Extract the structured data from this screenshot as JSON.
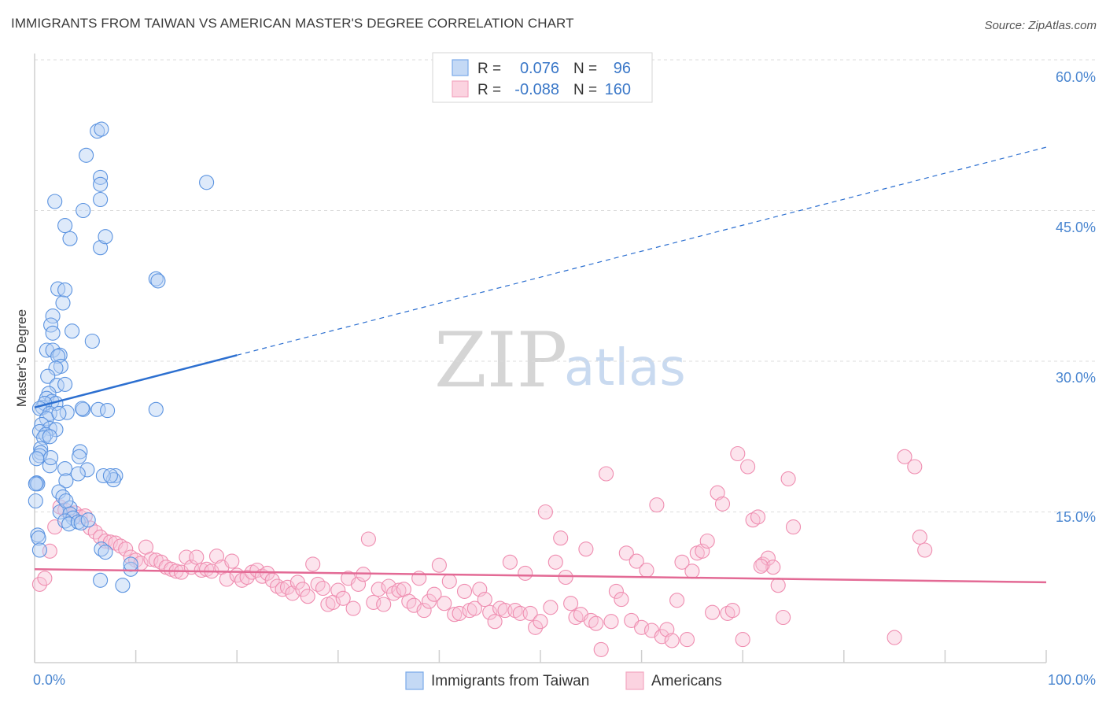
{
  "header": {
    "title": "IMMIGRANTS FROM TAIWAN VS AMERICAN MASTER'S DEGREE CORRELATION CHART",
    "source": "Source: ZipAtlas.com"
  },
  "watermark": {
    "zip": "ZIP",
    "atlas": "atlas"
  },
  "legend": {
    "r_label": "R =",
    "n_label": "N =",
    "rows": [
      {
        "r": "0.076",
        "n": "96",
        "color": "#7aaae8"
      },
      {
        "r": "-0.088",
        "n": "160",
        "color": "#f4a6c0"
      }
    ]
  },
  "bottom_legend": [
    "Immigrants from Taiwan",
    "Americans"
  ],
  "chart_data": {
    "type": "scatter",
    "title": "IMMIGRANTS FROM TAIWAN VS AMERICAN MASTER'S DEGREE CORRELATION CHART",
    "xlabel": "",
    "ylabel": "Master's Degree",
    "xlim": [
      0,
      100
    ],
    "ylim": [
      0,
      60
    ],
    "x_tick_labels": [
      "0.0%",
      "100.0%"
    ],
    "y_tick_labels": [
      "15.0%",
      "30.0%",
      "45.0%",
      "60.0%"
    ],
    "y_tick_values": [
      15,
      30,
      45,
      60
    ],
    "series": [
      {
        "name": "Immigrants from Taiwan",
        "color": "#5b93e0",
        "line_color": "#2c6fd0",
        "R": 0.076,
        "N": 96,
        "trend": {
          "x0": 0,
          "y0": 25.4,
          "x_solid_end": 20,
          "y_solid_end": 30.6,
          "x1": 100,
          "y1": 51.3
        },
        "points": [
          [
            6.2,
            52.9
          ],
          [
            5.1,
            50.5
          ],
          [
            6.6,
            53.1
          ],
          [
            6.5,
            48.3
          ],
          [
            6.5,
            47.6
          ],
          [
            2,
            45.9
          ],
          [
            4.8,
            45
          ],
          [
            6.5,
            46.1
          ],
          [
            3,
            43.5
          ],
          [
            3.5,
            42.2
          ],
          [
            6.5,
            41.3
          ],
          [
            7,
            42.4
          ],
          [
            17,
            47.8
          ],
          [
            12,
            38.2
          ],
          [
            12.2,
            38
          ],
          [
            2.3,
            37.2
          ],
          [
            3,
            37.1
          ],
          [
            2.8,
            35.8
          ],
          [
            1.8,
            34.5
          ],
          [
            1.6,
            33.6
          ],
          [
            1.8,
            32.8
          ],
          [
            3.7,
            33
          ],
          [
            5.7,
            32
          ],
          [
            1.2,
            31.1
          ],
          [
            1.8,
            31.1
          ],
          [
            2.5,
            30.6
          ],
          [
            2.3,
            30.5
          ],
          [
            2.6,
            29.5
          ],
          [
            2.1,
            29.3
          ],
          [
            1.3,
            28.5
          ],
          [
            2.2,
            27.6
          ],
          [
            3,
            27.7
          ],
          [
            1.4,
            26.8
          ],
          [
            1.2,
            26.3
          ],
          [
            1.7,
            26
          ],
          [
            2.1,
            25.8
          ],
          [
            0.8,
            25.4
          ],
          [
            1,
            25.8
          ],
          [
            0.5,
            25.3
          ],
          [
            1.5,
            24.8
          ],
          [
            3.2,
            24.9
          ],
          [
            6.3,
            25.2
          ],
          [
            4.8,
            25.2
          ],
          [
            4.7,
            25.3
          ],
          [
            1.2,
            24.3
          ],
          [
            0.7,
            23.7
          ],
          [
            1.5,
            23.3
          ],
          [
            2.1,
            23.2
          ],
          [
            0.5,
            23
          ],
          [
            1.1,
            22.7
          ],
          [
            0.9,
            22.4
          ],
          [
            1.5,
            22.5
          ],
          [
            0.6,
            21.3
          ],
          [
            0.6,
            20.9
          ],
          [
            0.5,
            20.6
          ],
          [
            4.5,
            21
          ],
          [
            4.4,
            20.5
          ],
          [
            1.5,
            19.6
          ],
          [
            3,
            19.3
          ],
          [
            5.2,
            19.2
          ],
          [
            4.3,
            18.8
          ],
          [
            3.1,
            18.1
          ],
          [
            8,
            18.6
          ],
          [
            7.8,
            18.2
          ],
          [
            6.8,
            18.6
          ],
          [
            7.5,
            18.6
          ],
          [
            0.2,
            17.9
          ],
          [
            0.3,
            17.8
          ],
          [
            0.1,
            17.8
          ],
          [
            2.4,
            17
          ],
          [
            2.8,
            16.5
          ],
          [
            0.1,
            16.1
          ],
          [
            3.5,
            15.4
          ],
          [
            2.5,
            15
          ],
          [
            3.5,
            14.8
          ],
          [
            3.8,
            14.4
          ],
          [
            3,
            14.1
          ],
          [
            3.4,
            13.8
          ],
          [
            4.3,
            14
          ],
          [
            4.6,
            13.9
          ],
          [
            5.3,
            14.2
          ],
          [
            0.3,
            12.7
          ],
          [
            0.4,
            12.4
          ],
          [
            0.5,
            11.2
          ],
          [
            6.6,
            11.3
          ],
          [
            7,
            11
          ],
          [
            9.5,
            9.3
          ],
          [
            9.5,
            9.8
          ],
          [
            6.5,
            8.2
          ],
          [
            8.7,
            7.7
          ],
          [
            12,
            25.2
          ],
          [
            7.2,
            25.1
          ],
          [
            0.2,
            20.3
          ],
          [
            2.4,
            24.8
          ],
          [
            1.6,
            20.4
          ],
          [
            3.1,
            16.1
          ]
        ]
      },
      {
        "name": "Americans",
        "color": "#f08cb0",
        "line_color": "#e36a95",
        "R": -0.088,
        "N": 160,
        "trend": {
          "x0": 0,
          "y0": 9.3,
          "x1": 100,
          "y1": 8
        },
        "points": [
          [
            0.5,
            7.8
          ],
          [
            1,
            8.4
          ],
          [
            1.5,
            11.1
          ],
          [
            2,
            13.5
          ],
          [
            2.5,
            15.5
          ],
          [
            3,
            15.2
          ],
          [
            3.5,
            14.8
          ],
          [
            4,
            14.9
          ],
          [
            4.5,
            14.5
          ],
          [
            5,
            14.6
          ],
          [
            5.5,
            13.4
          ],
          [
            6,
            13
          ],
          [
            6.5,
            12.5
          ],
          [
            7,
            12.1
          ],
          [
            7.5,
            12
          ],
          [
            8,
            11.9
          ],
          [
            8.5,
            11.6
          ],
          [
            9,
            11.3
          ],
          [
            9.5,
            10.5
          ],
          [
            10,
            10.2
          ],
          [
            10.5,
            9.9
          ],
          [
            11,
            11.5
          ],
          [
            11.5,
            10.3
          ],
          [
            12,
            10.2
          ],
          [
            12.5,
            10
          ],
          [
            13,
            9.5
          ],
          [
            13.5,
            9.3
          ],
          [
            14,
            9.1
          ],
          [
            14.5,
            9
          ],
          [
            15,
            10.5
          ],
          [
            15.5,
            9.5
          ],
          [
            16,
            10.5
          ],
          [
            16.5,
            9.2
          ],
          [
            17,
            9.3
          ],
          [
            17.5,
            9.1
          ],
          [
            18,
            10.6
          ],
          [
            18.5,
            9.5
          ],
          [
            19,
            8.3
          ],
          [
            19.5,
            10.1
          ],
          [
            20,
            8.7
          ],
          [
            20.5,
            8.2
          ],
          [
            21,
            8.5
          ],
          [
            21.5,
            9
          ],
          [
            22,
            9.2
          ],
          [
            22.5,
            8.6
          ],
          [
            23,
            8.9
          ],
          [
            23.5,
            8.2
          ],
          [
            24,
            7.6
          ],
          [
            24.5,
            7.3
          ],
          [
            25,
            7.5
          ],
          [
            25.5,
            6.9
          ],
          [
            26,
            8
          ],
          [
            26.5,
            7.3
          ],
          [
            27,
            6.6
          ],
          [
            27.5,
            9.8
          ],
          [
            28,
            7.8
          ],
          [
            28.5,
            7.4
          ],
          [
            29,
            5.8
          ],
          [
            29.5,
            6
          ],
          [
            30,
            7.2
          ],
          [
            30.5,
            6.4
          ],
          [
            31,
            8.4
          ],
          [
            31.5,
            5.4
          ],
          [
            32,
            7.8
          ],
          [
            32.5,
            8.8
          ],
          [
            33,
            12.3
          ],
          [
            33.5,
            6
          ],
          [
            34,
            7.3
          ],
          [
            34.5,
            5.8
          ],
          [
            35,
            7.6
          ],
          [
            35.5,
            6.9
          ],
          [
            36,
            7.2
          ],
          [
            36.5,
            7.3
          ],
          [
            37,
            6.1
          ],
          [
            37.5,
            5.7
          ],
          [
            38,
            8.4
          ],
          [
            38.5,
            5.2
          ],
          [
            39,
            6.1
          ],
          [
            39.5,
            6.8
          ],
          [
            40,
            9.7
          ],
          [
            40.5,
            5.9
          ],
          [
            41,
            8.1
          ],
          [
            41.5,
            4.8
          ],
          [
            42,
            4.9
          ],
          [
            42.5,
            7.1
          ],
          [
            43,
            5.2
          ],
          [
            43.5,
            5.4
          ],
          [
            44,
            7.3
          ],
          [
            44.5,
            6.3
          ],
          [
            45,
            5
          ],
          [
            45.5,
            4.1
          ],
          [
            46,
            5.4
          ],
          [
            46.5,
            5.2
          ],
          [
            47,
            10
          ],
          [
            47.5,
            5.2
          ],
          [
            48,
            4.9
          ],
          [
            48.5,
            8.9
          ],
          [
            49,
            4.9
          ],
          [
            49.5,
            3.5
          ],
          [
            50,
            4.1
          ],
          [
            50.5,
            15
          ],
          [
            51,
            5.5
          ],
          [
            51.5,
            10
          ],
          [
            52,
            12.4
          ],
          [
            52.5,
            8.5
          ],
          [
            53,
            5.9
          ],
          [
            53.5,
            4.5
          ],
          [
            54,
            4.8
          ],
          [
            54.5,
            11.3
          ],
          [
            55,
            4.2
          ],
          [
            55.5,
            3.9
          ],
          [
            56,
            1.3
          ],
          [
            56.5,
            18.8
          ],
          [
            57,
            4.1
          ],
          [
            57.5,
            7.1
          ],
          [
            58,
            6.3
          ],
          [
            58.5,
            10.9
          ],
          [
            59,
            4.2
          ],
          [
            59.5,
            10.1
          ],
          [
            60,
            3.5
          ],
          [
            60.5,
            9.2
          ],
          [
            61,
            3.2
          ],
          [
            61.5,
            15.7
          ],
          [
            62,
            2.6
          ],
          [
            62.5,
            3.3
          ],
          [
            63,
            2.2
          ],
          [
            63.5,
            6.2
          ],
          [
            64,
            10
          ],
          [
            64.5,
            2.3
          ],
          [
            65,
            9.1
          ],
          [
            65.5,
            10.9
          ],
          [
            66,
            11.1
          ],
          [
            66.5,
            12.1
          ],
          [
            67,
            5
          ],
          [
            67.5,
            16.9
          ],
          [
            68,
            15.8
          ],
          [
            68.5,
            4.9
          ],
          [
            69,
            5.2
          ],
          [
            69.5,
            20.8
          ],
          [
            70,
            2.3
          ],
          [
            70.5,
            19.5
          ],
          [
            71,
            14.2
          ],
          [
            71.5,
            14.5
          ],
          [
            72,
            9.8
          ],
          [
            72.5,
            10.4
          ],
          [
            73,
            9.5
          ],
          [
            73.5,
            7.7
          ],
          [
            74,
            4.5
          ],
          [
            74.5,
            18.3
          ],
          [
            75,
            13.5
          ],
          [
            86,
            20.5
          ],
          [
            87,
            19.5
          ],
          [
            87.5,
            12.5
          ],
          [
            88,
            11.2
          ],
          [
            85,
            2.5
          ],
          [
            71.8,
            9.6
          ]
        ]
      }
    ]
  }
}
